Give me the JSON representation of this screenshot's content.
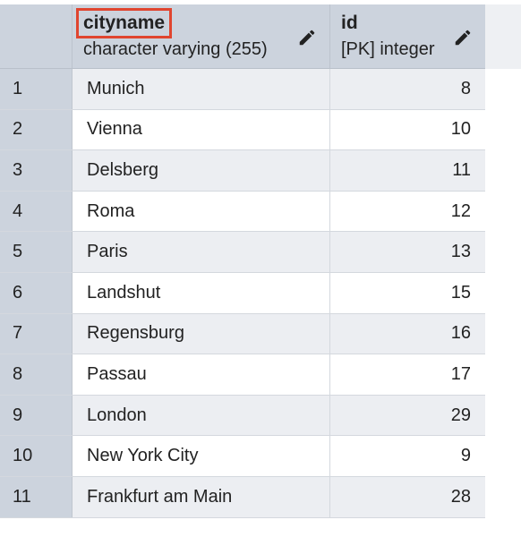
{
  "columns": [
    {
      "name": "cityname",
      "type": "character varying (255)"
    },
    {
      "name": "id",
      "type": "[PK] integer"
    }
  ],
  "rows": [
    {
      "num": "1",
      "cityname": "Munich",
      "id": "8"
    },
    {
      "num": "2",
      "cityname": "Vienna",
      "id": "10"
    },
    {
      "num": "3",
      "cityname": "Delsberg",
      "id": "11"
    },
    {
      "num": "4",
      "cityname": "Roma",
      "id": "12"
    },
    {
      "num": "5",
      "cityname": "Paris",
      "id": "13"
    },
    {
      "num": "6",
      "cityname": "Landshut",
      "id": "15"
    },
    {
      "num": "7",
      "cityname": "Regensburg",
      "id": "16"
    },
    {
      "num": "8",
      "cityname": "Passau",
      "id": "17"
    },
    {
      "num": "9",
      "cityname": "London",
      "id": "29"
    },
    {
      "num": "10",
      "cityname": "New York City",
      "id": "9"
    },
    {
      "num": "11",
      "cityname": "Frankfurt am Main",
      "id": "28"
    }
  ],
  "colors": {
    "header_bg": "#ccd3dd",
    "highlight_outline": "#e0452f",
    "row_alt": "#eceef2"
  },
  "icons": {
    "edit": "pencil-icon"
  }
}
